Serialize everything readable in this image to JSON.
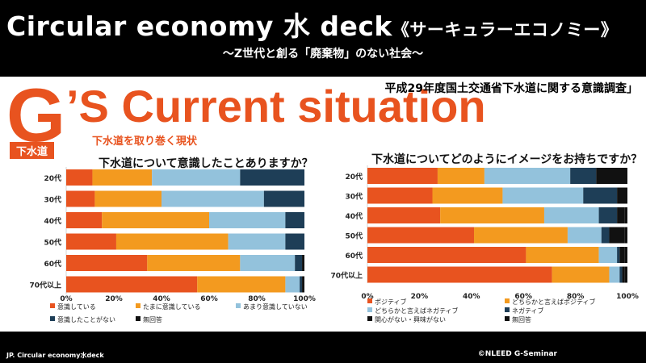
{
  "header": {
    "title": "Circular economy 水 deck",
    "title_suffix": "《サーキュラーエコノミー》",
    "subtitle": "〜Z世代と創る「廃棄物」のない社会〜"
  },
  "slide": {
    "big_letter": "G",
    "heading": "’S Current situation",
    "tag": "下水道",
    "kanren": "下水道を取り巻く現状",
    "survey_source": "平成29年度国土交通省下水道に関する意識調査」"
  },
  "footer": {
    "left": "JP. Circular economy水deck",
    "right": "©NLEED G-Seminar"
  },
  "colors": {
    "accent": "#e8531f",
    "orange": "#f39a1f",
    "lightblue": "#93c2dc",
    "navy": "#1e3e57",
    "black": "#111111"
  },
  "chart_data": [
    {
      "type": "bar",
      "stacked": "horizontal-100",
      "title": "下水道について意識したことありますか？",
      "categories": [
        "20代",
        "30代",
        "40代",
        "50代",
        "60代",
        "70代以上"
      ],
      "series": [
        {
          "name": "意識している",
          "values": [
            11,
            12,
            15,
            21,
            34,
            55
          ]
        },
        {
          "name": "たまに意識している",
          "values": [
            25,
            28,
            45,
            47,
            39,
            37
          ]
        },
        {
          "name": "あまり意識していない",
          "values": [
            37,
            43,
            32,
            24,
            23,
            6
          ]
        },
        {
          "name": "意識したことがない",
          "values": [
            27,
            17,
            8,
            8,
            3,
            1
          ]
        },
        {
          "name": "無回答",
          "values": [
            0,
            0,
            0,
            0,
            1,
            1
          ]
        }
      ],
      "xtick_labels": [
        "0%",
        "20%",
        "40%",
        "60%",
        "80%",
        "100%"
      ],
      "xlim": [
        0,
        100
      ],
      "legend": "bottom",
      "grid": false
    },
    {
      "type": "bar",
      "stacked": "horizontal-100",
      "title": "下水道についてどのようにイメージをお持ちですか？",
      "categories": [
        "20代",
        "30代",
        "40代",
        "50代",
        "60代",
        "70代以上"
      ],
      "series": [
        {
          "name": "ポジティブ",
          "values": [
            27,
            25,
            28,
            41,
            61,
            71
          ]
        },
        {
          "name": "どちらかと言えばポジティブ",
          "values": [
            18,
            27,
            40,
            36,
            28,
            22
          ]
        },
        {
          "name": "どちらかと言えばネガティブ",
          "values": [
            33,
            31,
            21,
            13,
            7,
            4
          ]
        },
        {
          "name": "ネガティブ",
          "values": [
            10,
            13,
            7,
            3,
            1,
            1
          ]
        },
        {
          "name": "関心がない・興味がない",
          "values": [
            12,
            4,
            3,
            6,
            2,
            1
          ]
        },
        {
          "name": "無回答",
          "values": [
            0,
            0,
            1,
            1,
            1,
            1
          ]
        }
      ],
      "xtick_labels": [
        "0%",
        "20%",
        "40%",
        "60%",
        "80%",
        "100%"
      ],
      "xlim": [
        0,
        100
      ],
      "legend": "bottom",
      "grid": false
    }
  ]
}
